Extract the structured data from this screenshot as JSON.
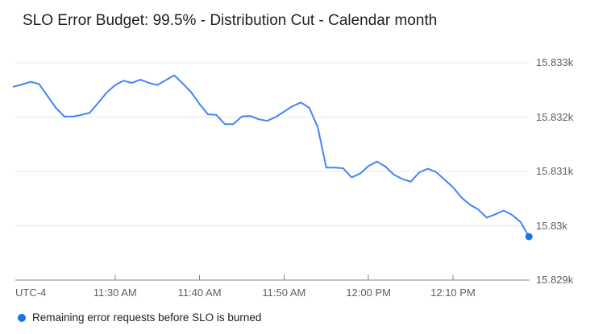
{
  "title": "SLO Error Budget: 99.5% - Distribution Cut - Calendar month",
  "legend": {
    "label": "Remaining error requests before SLO is burned",
    "dot_color": "#1a73e8"
  },
  "colors": {
    "line": "#4285f4",
    "end_dot": "#1a73e8",
    "gridline": "#e7e7e7",
    "axis": "#80868b",
    "tick_mark": "#80868b",
    "axis_text": "#616161",
    "title_text": "#1f1f1f",
    "legend_text": "#202124",
    "background": "#ffffff"
  },
  "x_axis": {
    "timezone_label": "UTC-4",
    "tick_labels": [
      "11:30 AM",
      "11:40 AM",
      "11:50 AM",
      "12:00 PM",
      "12:10 PM"
    ],
    "tick_minute_offsets": [
      12,
      22,
      32,
      42,
      52
    ]
  },
  "y_axis": {
    "tick_labels": [
      "15.833k",
      "15.832k",
      "15.831k",
      "15.83k",
      "15.829k"
    ],
    "tick_values": [
      15833,
      15832,
      15831,
      15830,
      15829
    ]
  },
  "chart_data": {
    "type": "line",
    "title": "SLO Error Budget: 99.5% - Distribution Cut - Calendar month",
    "xlabel": "",
    "ylabel": "",
    "x_tick_labels": [
      "11:30 AM",
      "11:40 AM",
      "11:50 AM",
      "12:00 PM",
      "12:10 PM"
    ],
    "y_tick_labels": [
      "15.833k",
      "15.832k",
      "15.831k",
      "15.83k",
      "15.829k"
    ],
    "ylim": [
      15829,
      15833.3
    ],
    "grid": "horizontal",
    "legend_position": "bottom-left",
    "end_marker": "dot",
    "timezone": "UTC-4",
    "series": [
      {
        "name": "Remaining error requests before SLO is burned",
        "color": "#4285f4",
        "start_time": "11:18 AM",
        "end_time": "12:19 PM",
        "interval_minutes": 1,
        "values": [
          15832.56,
          15832.6,
          15832.65,
          15832.61,
          15832.39,
          15832.17,
          15832.01,
          15832.01,
          15832.04,
          15832.08,
          15832.26,
          15832.45,
          15832.59,
          15832.67,
          15832.63,
          15832.69,
          15832.63,
          15832.59,
          15832.68,
          15832.77,
          15832.62,
          15832.46,
          15832.24,
          15832.05,
          15832.04,
          15831.87,
          15831.87,
          15832.01,
          15832.02,
          15831.96,
          15831.93,
          15832.0,
          15832.1,
          15832.2,
          15832.27,
          15832.17,
          15831.81,
          15831.07,
          15831.07,
          15831.06,
          15830.89,
          15830.96,
          15831.1,
          15831.18,
          15831.09,
          15830.94,
          15830.86,
          15830.81,
          15830.98,
          15831.05,
          15830.99,
          15830.85,
          15830.71,
          15830.52,
          15830.39,
          15830.3,
          15830.15,
          15830.21,
          15830.28,
          15830.2,
          15830.07,
          15829.8
        ]
      }
    ]
  }
}
